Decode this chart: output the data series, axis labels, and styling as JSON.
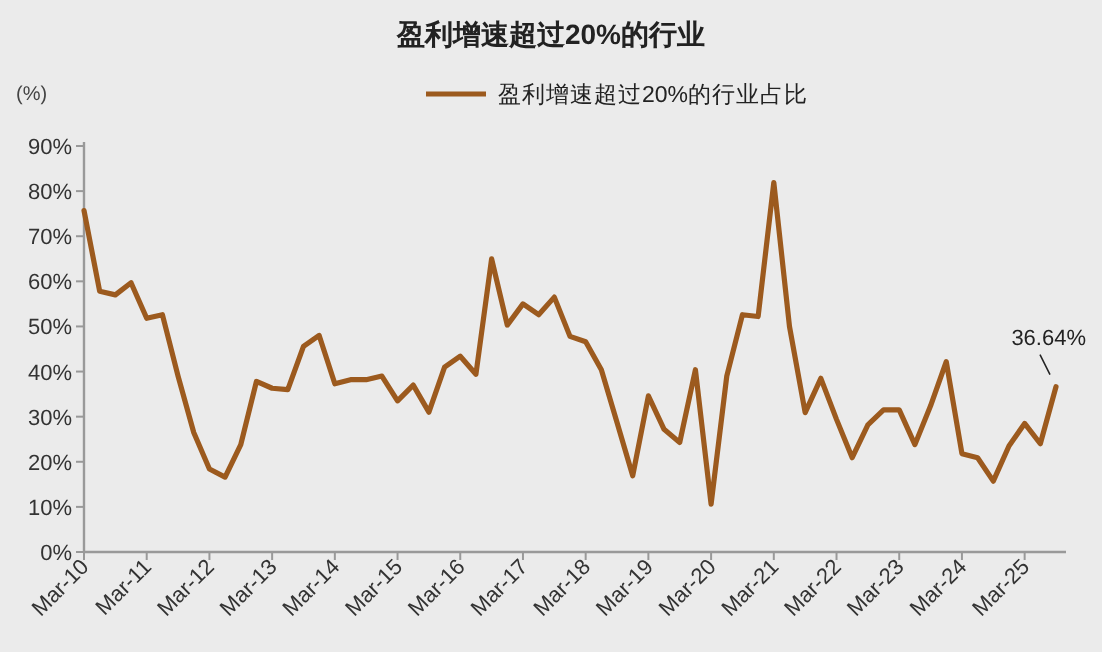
{
  "chart_data": {
    "type": "line",
    "title": "盈利增速超过20%的行业",
    "ylabel": "(%)",
    "legend": "top",
    "categories": [
      "Mar-10",
      null,
      null,
      null,
      "Mar-11",
      null,
      null,
      null,
      "Mar-12",
      null,
      null,
      null,
      "Mar-13",
      null,
      null,
      null,
      "Mar-14",
      null,
      null,
      null,
      "Mar-15",
      null,
      null,
      null,
      "Mar-16",
      null,
      null,
      null,
      "Mar-17",
      null,
      null,
      null,
      "Mar-18",
      null,
      null,
      null,
      "Mar-19",
      null,
      null,
      null,
      "Mar-20",
      null,
      null,
      null,
      "Mar-21",
      null,
      null,
      null,
      "Mar-22",
      null,
      null,
      null,
      "Mar-23",
      null,
      null,
      null,
      "Mar-24",
      null,
      null,
      null,
      "Mar-25",
      null,
      null
    ],
    "series": [
      {
        "name": "盈利增速超过20%的行业占比",
        "color": "#9c5a1e",
        "values": [
          75.7,
          57.8,
          57,
          59.7,
          51.8,
          52.6,
          39,
          26.5,
          18.4,
          16.6,
          23.8,
          37.8,
          36.3,
          36,
          45.6,
          48,
          37.3,
          38.2,
          38.2,
          39,
          33.5,
          37,
          31,
          41,
          43.4,
          39.4,
          65,
          50.3,
          55,
          52.6,
          56.5,
          47.8,
          46.6,
          40.4,
          28.7,
          16.9,
          34.6,
          27.2,
          24.3,
          40.4,
          10.6,
          39,
          52.6,
          52.2,
          81.9,
          50,
          30.9,
          38.5,
          29.4,
          20.9,
          28.2,
          31.5,
          31.5,
          23.8,
          32.4,
          42.2,
          21.8,
          20.9,
          15.7,
          23.5,
          28.5,
          24,
          36.64
        ]
      }
    ],
    "ylim": [
      0,
      90
    ],
    "yticks": [
      {
        "value": 0,
        "label": "0%"
      },
      {
        "value": 10,
        "label": "10%"
      },
      {
        "value": 20,
        "label": "20%"
      },
      {
        "value": 30,
        "label": "30%"
      },
      {
        "value": 40,
        "label": "40%"
      },
      {
        "value": 50,
        "label": "50%"
      },
      {
        "value": 60,
        "label": "60%"
      },
      {
        "value": 70,
        "label": "70%"
      },
      {
        "value": 80,
        "label": "80%"
      },
      {
        "value": 90,
        "label": "90%"
      }
    ],
    "grid": false,
    "marker": "none",
    "line_style": "solid",
    "annotations": [
      {
        "text": "36.64%",
        "y": 36.64
      }
    ]
  }
}
